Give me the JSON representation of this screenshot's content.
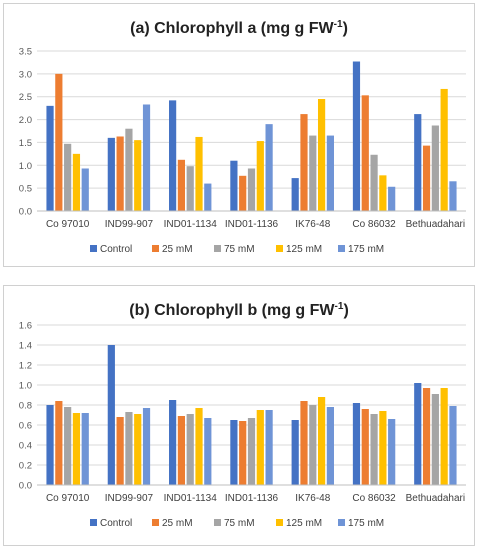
{
  "colors": {
    "Control": "#4472c4",
    "25 mM": "#ed7d31",
    "75 mM": "#a5a5a5",
    "125 mM": "#ffc000",
    "175 mM": "#6f94d6"
  },
  "chart_data": [
    {
      "type": "bar",
      "title": "(a) Chlorophyll a (mg g FW",
      "title_sup": "-1",
      "title_end": ")",
      "xlabel": "",
      "ylabel": "",
      "categories": [
        "Co 97010",
        "IND99-907",
        "IND01-1134",
        "IND01-1136",
        "IK76-48",
        "Co 86032",
        "Bethuadahari"
      ],
      "ylim": [
        0,
        3.5
      ],
      "yticks": [
        "0.0",
        "0.5",
        "1.0",
        "1.5",
        "2.0",
        "2.5",
        "3.0",
        "3.5"
      ],
      "grid": true,
      "legend_position": "bottom",
      "series": [
        {
          "name": "Control",
          "values": [
            2.3,
            1.6,
            2.42,
            1.1,
            0.72,
            3.27,
            2.12
          ]
        },
        {
          "name": "25 mM",
          "values": [
            3.0,
            1.63,
            1.12,
            0.77,
            2.12,
            2.53,
            1.43
          ]
        },
        {
          "name": "75 mM",
          "values": [
            1.47,
            1.8,
            0.98,
            0.93,
            1.65,
            1.23,
            1.87
          ]
        },
        {
          "name": "125 mM",
          "values": [
            1.25,
            1.55,
            1.62,
            1.53,
            2.45,
            0.78,
            2.67
          ]
        },
        {
          "name": "175 mM",
          "values": [
            0.93,
            2.33,
            0.6,
            1.9,
            1.65,
            0.53,
            0.65
          ]
        }
      ]
    },
    {
      "type": "bar",
      "title": "(b) Chlorophyll b (mg g FW",
      "title_sup": "-1",
      "title_end": ")",
      "xlabel": "",
      "ylabel": "",
      "categories": [
        "Co 97010",
        "IND99-907",
        "IND01-1134",
        "IND01-1136",
        "IK76-48",
        "Co 86032",
        "Bethuadahari"
      ],
      "ylim": [
        0,
        1.6
      ],
      "yticks": [
        "0.0",
        "0.2",
        "0.4",
        "0.6",
        "0.8",
        "1.0",
        "1.2",
        "1.4",
        "1.6"
      ],
      "grid": true,
      "legend_position": "bottom",
      "series": [
        {
          "name": "Control",
          "values": [
            0.8,
            1.4,
            0.85,
            0.65,
            0.65,
            0.82,
            1.02
          ]
        },
        {
          "name": "25 mM",
          "values": [
            0.84,
            0.68,
            0.69,
            0.64,
            0.84,
            0.76,
            0.97
          ]
        },
        {
          "name": "75 mM",
          "values": [
            0.78,
            0.73,
            0.71,
            0.67,
            0.8,
            0.71,
            0.91
          ]
        },
        {
          "name": "125 mM",
          "values": [
            0.72,
            0.71,
            0.77,
            0.75,
            0.88,
            0.74,
            0.97
          ]
        },
        {
          "name": "175 mM",
          "values": [
            0.72,
            0.77,
            0.67,
            0.75,
            0.78,
            0.66,
            0.79
          ]
        }
      ]
    }
  ]
}
